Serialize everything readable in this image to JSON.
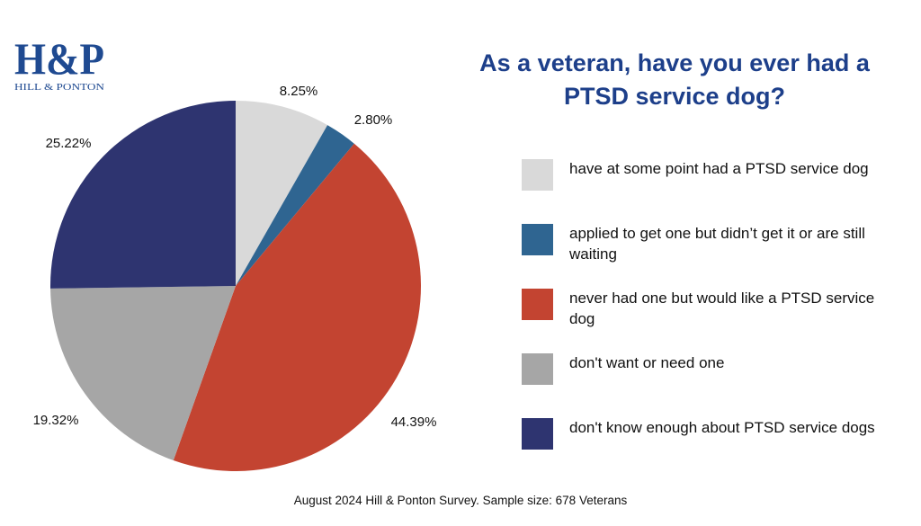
{
  "logo": {
    "text": "H&P",
    "subtext": "HILL & PONTON",
    "color": "#1f4a91"
  },
  "chart_data": {
    "type": "pie",
    "title": "As a veteran, have you ever had a PTSD service dog?",
    "start": "12 o'clock, clockwise",
    "legend_position": "right",
    "slices": [
      {
        "label": "have at some point had a PTSD service dog",
        "value": 8.25,
        "display": "8.25%",
        "color": "#d9d9d9"
      },
      {
        "label": "applied to get one but didn’t get it or are still waiting",
        "value": 2.8,
        "display": "2.80%",
        "color": "#2f6591"
      },
      {
        "label": "never had one but would like a PTSD service dog",
        "value": 44.39,
        "display": "44.39%",
        "color": "#c34431"
      },
      {
        "label": "don't want or need one",
        "value": 19.32,
        "display": "19.32%",
        "color": "#a6a6a6"
      },
      {
        "label": "don't know enough about PTSD service dogs",
        "value": 25.22,
        "display": "25.22%",
        "color": "#2e3470"
      }
    ]
  },
  "footer": "August 2024 Hill & Ponton Survey. Sample size: 678 Veterans"
}
